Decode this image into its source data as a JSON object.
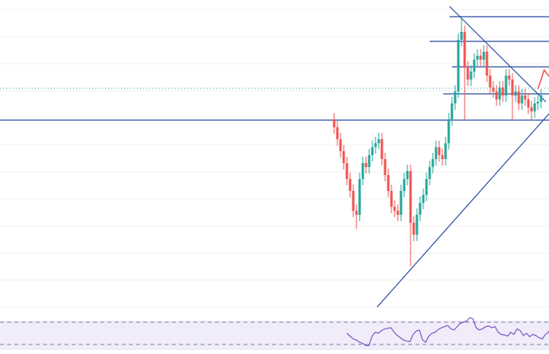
{
  "chart_data": {
    "type": "candlestick",
    "open": [
      250,
      240,
      225,
      210,
      195,
      175,
      160,
      135,
      130,
      175,
      195,
      190,
      205,
      215,
      220,
      225,
      200,
      180,
      160,
      140,
      135,
      130,
      160,
      175,
      185,
      120,
      105,
      130,
      145,
      155,
      175,
      190,
      200,
      215,
      205,
      200,
      220,
      250,
      270,
      285,
      350,
      360,
      315,
      300,
      310,
      325,
      330,
      325,
      335,
      305,
      290,
      285,
      275,
      290,
      280,
      305,
      300,
      280,
      285,
      270,
      280,
      275,
      265,
      260,
      270,
      272
    ],
    "high": [
      258,
      248,
      233,
      218,
      203,
      183,
      168,
      143,
      183,
      203,
      203,
      213,
      223,
      228,
      233,
      233,
      208,
      188,
      168,
      148,
      143,
      168,
      183,
      193,
      193,
      128,
      138,
      153,
      163,
      183,
      198,
      208,
      223,
      223,
      213,
      228,
      258,
      278,
      293,
      358,
      380,
      368,
      323,
      318,
      333,
      338,
      338,
      343,
      343,
      313,
      298,
      293,
      298,
      298,
      313,
      313,
      308,
      293,
      293,
      288,
      288,
      283,
      273,
      278,
      280,
      288
    ],
    "low": [
      232,
      217,
      202,
      187,
      167,
      152,
      127,
      112,
      122,
      167,
      182,
      182,
      197,
      207,
      212,
      192,
      172,
      152,
      132,
      127,
      122,
      122,
      152,
      167,
      65,
      97,
      97,
      122,
      137,
      147,
      167,
      182,
      192,
      197,
      192,
      192,
      212,
      242,
      262,
      277,
      342,
      250,
      292,
      292,
      302,
      317,
      317,
      317,
      297,
      282,
      277,
      267,
      267,
      272,
      272,
      292,
      250,
      272,
      262,
      262,
      267,
      257,
      250,
      252,
      262,
      264
    ],
    "close": [
      240,
      225,
      210,
      195,
      175,
      160,
      135,
      130,
      175,
      195,
      190,
      205,
      215,
      220,
      225,
      200,
      180,
      160,
      140,
      135,
      130,
      160,
      175,
      185,
      120,
      105,
      130,
      145,
      155,
      175,
      190,
      200,
      215,
      205,
      200,
      220,
      250,
      270,
      285,
      350,
      360,
      315,
      300,
      310,
      325,
      330,
      325,
      335,
      305,
      290,
      285,
      275,
      290,
      280,
      305,
      300,
      280,
      285,
      270,
      280,
      275,
      265,
      260,
      270,
      272,
      280
    ],
    "up_color": "#26a69a",
    "down_color": "#ef5350",
    "ylim": [
      0,
      400
    ],
    "yticks": [
      14,
      48,
      82,
      116,
      150,
      184,
      218,
      252,
      286,
      320,
      354,
      388
    ],
    "grid": true,
    "rsi": {
      "values": [
        50,
        45,
        40,
        38,
        34,
        32,
        28,
        28,
        45,
        52,
        50,
        55,
        58,
        59,
        60,
        52,
        46,
        42,
        38,
        36,
        35,
        48,
        54,
        56,
        38,
        34,
        45,
        50,
        52,
        57,
        60,
        62,
        64,
        58,
        56,
        62,
        68,
        70,
        72,
        78,
        76,
        60,
        56,
        58,
        62,
        63,
        60,
        62,
        52,
        48,
        47,
        45,
        52,
        48,
        58,
        55,
        46,
        50,
        44,
        48,
        46,
        42,
        40,
        48,
        52,
        62
      ],
      "color": "#7e57c2",
      "ylim": [
        20,
        80
      ],
      "bands": [
        70,
        30
      ]
    }
  }
}
